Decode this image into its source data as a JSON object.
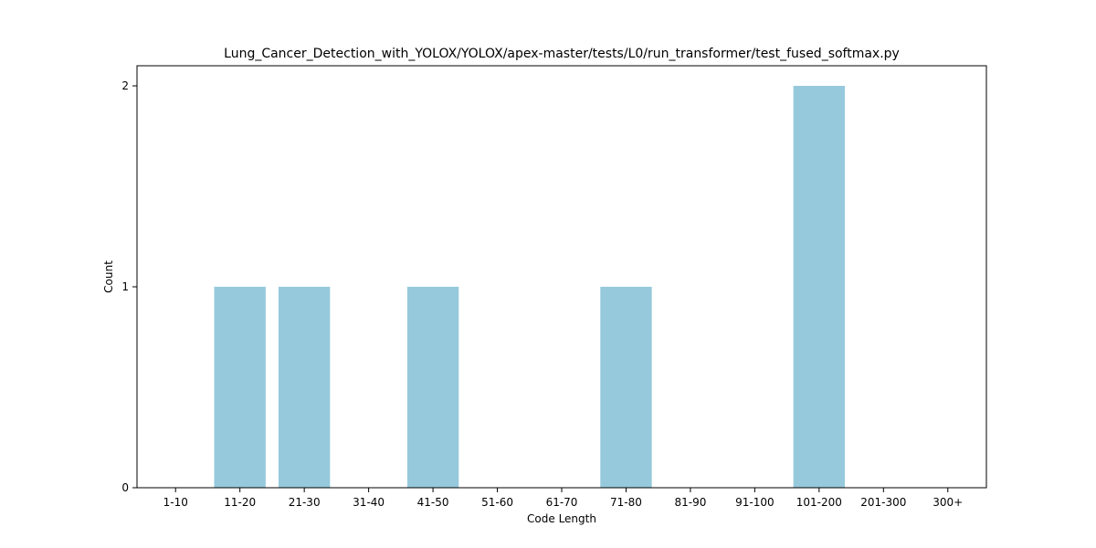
{
  "chart_data": {
    "type": "bar",
    "title": "Lung_Cancer_Detection_with_YOLOX/YOLOX/apex-master/tests/L0/run_transformer/test_fused_softmax.py",
    "xlabel": "Code Length",
    "ylabel": "Count",
    "categories": [
      "1-10",
      "11-20",
      "21-30",
      "31-40",
      "41-50",
      "51-60",
      "61-70",
      "71-80",
      "81-90",
      "91-100",
      "101-200",
      "201-300",
      "300+"
    ],
    "values": [
      0,
      1,
      1,
      0,
      1,
      0,
      0,
      1,
      0,
      0,
      2,
      0,
      0
    ],
    "ylim": [
      0,
      2.1
    ],
    "yticks": [
      0,
      1,
      2
    ],
    "grid": false,
    "legend": "none",
    "bar_color": "#96c9dc"
  }
}
